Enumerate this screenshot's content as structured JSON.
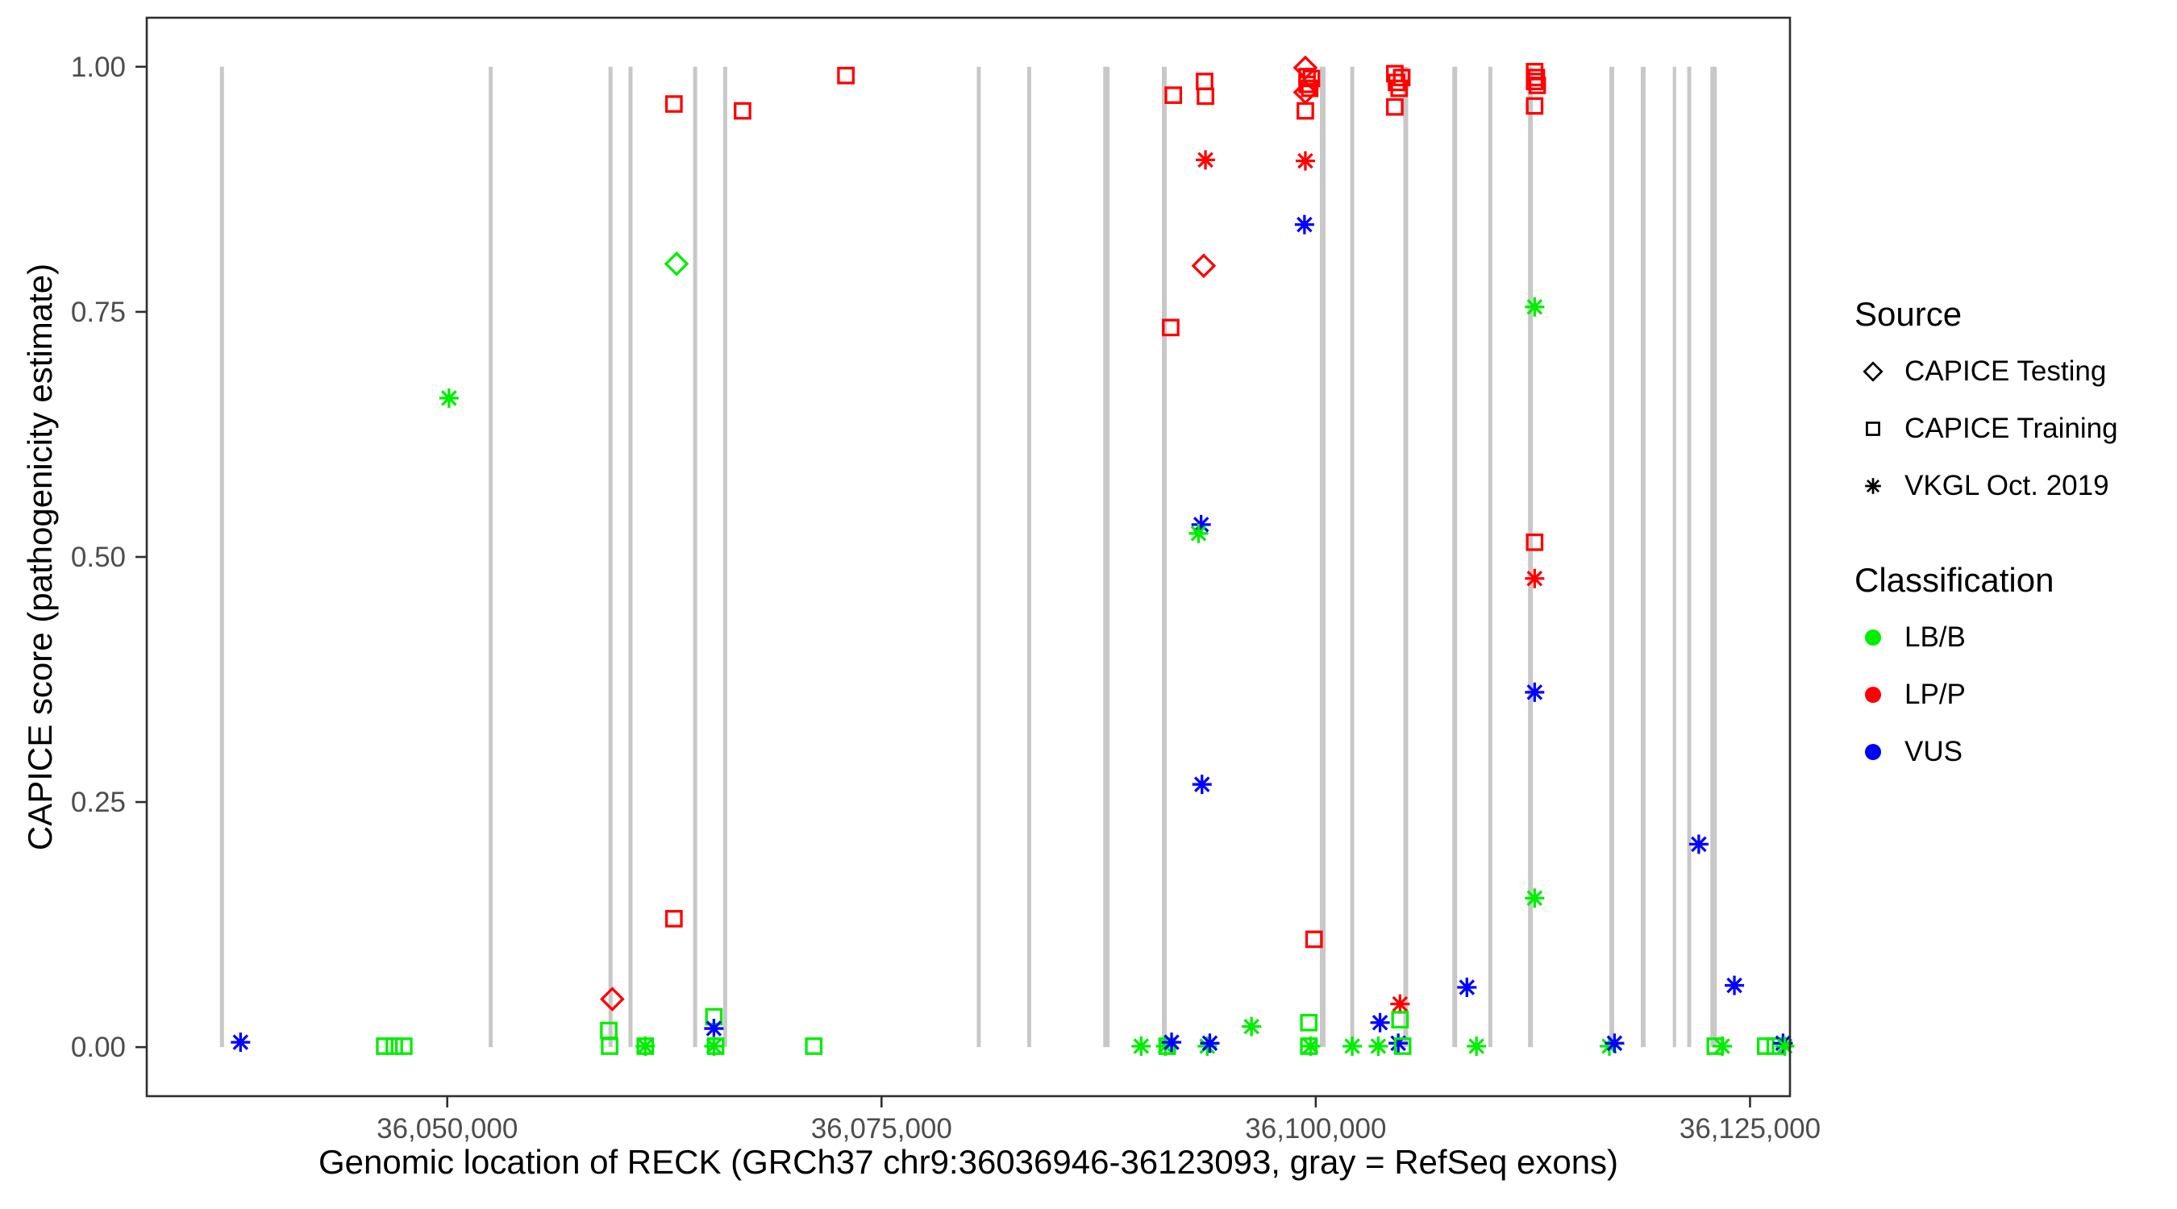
{
  "colors": {
    "LB/B": "#00ee00",
    "LP/P": "#ff0000",
    "VUS": "#0000ff",
    "exon_gray": "#c8c8c8",
    "panel_border": "#2f2f2f",
    "tick_text": "#4d4d4d",
    "legend_symbol": "#000000"
  },
  "layout_note": "scatter of CAPICE scores along RECK gene with gray exon bars",
  "chart_data": {
    "type": "scatter",
    "title": "",
    "xlabel": "Genomic location of RECK (GRCh37 chr9:36036946-36123093, gray = RefSeq exons)",
    "ylabel": "CAPICE score (pathogenicity estimate)",
    "xlim": [
      36032700,
      36127300
    ],
    "ylim": [
      -0.05,
      1.05
    ],
    "grid": "off",
    "x_ticks": [
      36050000,
      36075000,
      36100000,
      36125000
    ],
    "x_tick_labels": [
      "36,050,000",
      "36,075,000",
      "36,100,000",
      "36,125,000"
    ],
    "y_ticks": [
      0.0,
      0.25,
      0.5,
      0.75,
      1.0
    ],
    "y_tick_labels": [
      "0.00",
      "0.25",
      "0.50",
      "0.75",
      "1.00"
    ],
    "legend_position": "right",
    "legend": {
      "source": {
        "title": "Source",
        "items": [
          {
            "shape": "diamond",
            "label": "CAPICE Testing"
          },
          {
            "shape": "square",
            "label": "CAPICE Training"
          },
          {
            "shape": "asterisk",
            "label": "VKGL Oct. 2019"
          }
        ]
      },
      "classification": {
        "title": "Classification",
        "items": [
          {
            "class": "LB/B",
            "label": "LB/B"
          },
          {
            "class": "LP/P",
            "label": "LP/P"
          },
          {
            "class": "VUS",
            "label": "VUS"
          }
        ]
      }
    },
    "exons_note": "gray vertical bars = RefSeq exons, drawn from score 0 to 1; pos = genomic center, w = bar width px",
    "exons": [
      {
        "pos": 36037030,
        "w": 5
      },
      {
        "pos": 36052500,
        "w": 5
      },
      {
        "pos": 36059400,
        "w": 5
      },
      {
        "pos": 36060550,
        "w": 5
      },
      {
        "pos": 36064270,
        "w": 5
      },
      {
        "pos": 36066000,
        "w": 5
      },
      {
        "pos": 36080600,
        "w": 5
      },
      {
        "pos": 36083500,
        "w": 5
      },
      {
        "pos": 36087950,
        "w": 8
      },
      {
        "pos": 36091280,
        "w": 6
      },
      {
        "pos": 36100400,
        "w": 7
      },
      {
        "pos": 36102100,
        "w": 5
      },
      {
        "pos": 36105180,
        "w": 6
      },
      {
        "pos": 36108000,
        "w": 6
      },
      {
        "pos": 36110050,
        "w": 5
      },
      {
        "pos": 36112360,
        "w": 6
      },
      {
        "pos": 36117040,
        "w": 6
      },
      {
        "pos": 36118850,
        "w": 6
      },
      {
        "pos": 36120650,
        "w": 4
      },
      {
        "pos": 36121500,
        "w": 5
      },
      {
        "pos": 36122900,
        "w": 8
      }
    ],
    "points_note": "x = genomic position (GRCh37 chr9), y = CAPICE score, c = classification, s = source shape",
    "points": [
      {
        "x": 36038100,
        "y": 0.005,
        "c": "VUS",
        "s": "vkgl"
      },
      {
        "x": 36046400,
        "y": 0.001,
        "c": "LB/B",
        "s": "training"
      },
      {
        "x": 36046950,
        "y": 0.001,
        "c": "LB/B",
        "s": "training"
      },
      {
        "x": 36047500,
        "y": 0.001,
        "c": "LB/B",
        "s": "training"
      },
      {
        "x": 36050100,
        "y": 0.662,
        "c": "LB/B",
        "s": "vkgl"
      },
      {
        "x": 36059300,
        "y": 0.017,
        "c": "LB/B",
        "s": "training"
      },
      {
        "x": 36059350,
        "y": 0.001,
        "c": "LB/B",
        "s": "training"
      },
      {
        "x": 36059500,
        "y": 0.049,
        "c": "LP/P",
        "s": "testing"
      },
      {
        "x": 36061400,
        "y": 0.001,
        "c": "LB/B",
        "s": "vkgl"
      },
      {
        "x": 36061400,
        "y": 0.001,
        "c": "LB/B",
        "s": "training"
      },
      {
        "x": 36063050,
        "y": 0.131,
        "c": "LP/P",
        "s": "training"
      },
      {
        "x": 36063050,
        "y": 0.962,
        "c": "LP/P",
        "s": "training"
      },
      {
        "x": 36063200,
        "y": 0.799,
        "c": "LB/B",
        "s": "testing"
      },
      {
        "x": 36065350,
        "y": 0.031,
        "c": "LB/B",
        "s": "training"
      },
      {
        "x": 36065350,
        "y": 0.019,
        "c": "VUS",
        "s": "vkgl"
      },
      {
        "x": 36065350,
        "y": 0.001,
        "c": "LB/B",
        "s": "vkgl"
      },
      {
        "x": 36065450,
        "y": 0.001,
        "c": "LB/B",
        "s": "training"
      },
      {
        "x": 36067000,
        "y": 0.955,
        "c": "LP/P",
        "s": "training"
      },
      {
        "x": 36071100,
        "y": 0.001,
        "c": "LB/B",
        "s": "training"
      },
      {
        "x": 36072950,
        "y": 0.991,
        "c": "LP/P",
        "s": "training"
      },
      {
        "x": 36089950,
        "y": 0.001,
        "c": "LB/B",
        "s": "vkgl"
      },
      {
        "x": 36091350,
        "y": 0.001,
        "c": "LB/B",
        "s": "vkgl"
      },
      {
        "x": 36091450,
        "y": 0.001,
        "c": "LB/B",
        "s": "training"
      },
      {
        "x": 36091700,
        "y": 0.005,
        "c": "VUS",
        "s": "vkgl"
      },
      {
        "x": 36091650,
        "y": 0.734,
        "c": "LP/P",
        "s": "training"
      },
      {
        "x": 36091800,
        "y": 0.971,
        "c": "LP/P",
        "s": "training"
      },
      {
        "x": 36093600,
        "y": 0.985,
        "c": "LP/P",
        "s": "training"
      },
      {
        "x": 36093650,
        "y": 0.97,
        "c": "LP/P",
        "s": "training"
      },
      {
        "x": 36093650,
        "y": 0.905,
        "c": "LP/P",
        "s": "vkgl"
      },
      {
        "x": 36093550,
        "y": 0.797,
        "c": "LP/P",
        "s": "testing"
      },
      {
        "x": 36093400,
        "y": 0.533,
        "c": "VUS",
        "s": "vkgl"
      },
      {
        "x": 36093250,
        "y": 0.524,
        "c": "LB/B",
        "s": "vkgl"
      },
      {
        "x": 36093450,
        "y": 0.268,
        "c": "VUS",
        "s": "vkgl"
      },
      {
        "x": 36093750,
        "y": 0.001,
        "c": "LB/B",
        "s": "vkgl"
      },
      {
        "x": 36093900,
        "y": 0.004,
        "c": "VUS",
        "s": "vkgl"
      },
      {
        "x": 36096300,
        "y": 0.021,
        "c": "LB/B",
        "s": "vkgl"
      },
      {
        "x": 36099600,
        "y": 0.025,
        "c": "LB/B",
        "s": "training"
      },
      {
        "x": 36099600,
        "y": 0.001,
        "c": "LB/B",
        "s": "training"
      },
      {
        "x": 36099700,
        "y": 0.001,
        "c": "LB/B",
        "s": "vkgl"
      },
      {
        "x": 36099400,
        "y": 0.999,
        "c": "LP/P",
        "s": "testing"
      },
      {
        "x": 36099500,
        "y": 0.99,
        "c": "LP/P",
        "s": "training"
      },
      {
        "x": 36099750,
        "y": 0.988,
        "c": "LP/P",
        "s": "training"
      },
      {
        "x": 36099500,
        "y": 0.982,
        "c": "LP/P",
        "s": "training"
      },
      {
        "x": 36099650,
        "y": 0.978,
        "c": "LP/P",
        "s": "training"
      },
      {
        "x": 36099400,
        "y": 0.974,
        "c": "LP/P",
        "s": "testing"
      },
      {
        "x": 36099400,
        "y": 0.955,
        "c": "LP/P",
        "s": "training"
      },
      {
        "x": 36099400,
        "y": 0.904,
        "c": "LP/P",
        "s": "vkgl"
      },
      {
        "x": 36099350,
        "y": 0.839,
        "c": "VUS",
        "s": "vkgl"
      },
      {
        "x": 36099900,
        "y": 0.11,
        "c": "LP/P",
        "s": "training"
      },
      {
        "x": 36102100,
        "y": 0.001,
        "c": "LB/B",
        "s": "vkgl"
      },
      {
        "x": 36103600,
        "y": 0.001,
        "c": "LB/B",
        "s": "vkgl"
      },
      {
        "x": 36103700,
        "y": 0.025,
        "c": "VUS",
        "s": "vkgl"
      },
      {
        "x": 36104850,
        "y": 0.044,
        "c": "LP/P",
        "s": "vkgl"
      },
      {
        "x": 36104850,
        "y": 0.028,
        "c": "LB/B",
        "s": "training"
      },
      {
        "x": 36104750,
        "y": 0.004,
        "c": "VUS",
        "s": "vkgl"
      },
      {
        "x": 36105000,
        "y": 0.001,
        "c": "LB/B",
        "s": "training"
      },
      {
        "x": 36104550,
        "y": 0.993,
        "c": "LP/P",
        "s": "training"
      },
      {
        "x": 36104950,
        "y": 0.989,
        "c": "LP/P",
        "s": "training"
      },
      {
        "x": 36104650,
        "y": 0.984,
        "c": "LP/P",
        "s": "training"
      },
      {
        "x": 36104800,
        "y": 0.978,
        "c": "LP/P",
        "s": "training"
      },
      {
        "x": 36104550,
        "y": 0.959,
        "c": "LP/P",
        "s": "training"
      },
      {
        "x": 36108700,
        "y": 0.061,
        "c": "VUS",
        "s": "vkgl"
      },
      {
        "x": 36109250,
        "y": 0.001,
        "c": "LB/B",
        "s": "vkgl"
      },
      {
        "x": 36112600,
        "y": 0.995,
        "c": "LP/P",
        "s": "training"
      },
      {
        "x": 36112700,
        "y": 0.989,
        "c": "LP/P",
        "s": "training"
      },
      {
        "x": 36112600,
        "y": 0.985,
        "c": "LP/P",
        "s": "training"
      },
      {
        "x": 36112750,
        "y": 0.981,
        "c": "LP/P",
        "s": "training"
      },
      {
        "x": 36112600,
        "y": 0.96,
        "c": "LP/P",
        "s": "training"
      },
      {
        "x": 36112600,
        "y": 0.755,
        "c": "LB/B",
        "s": "vkgl"
      },
      {
        "x": 36112600,
        "y": 0.515,
        "c": "LP/P",
        "s": "training"
      },
      {
        "x": 36112600,
        "y": 0.478,
        "c": "LP/P",
        "s": "vkgl"
      },
      {
        "x": 36112600,
        "y": 0.362,
        "c": "VUS",
        "s": "vkgl"
      },
      {
        "x": 36112600,
        "y": 0.152,
        "c": "LB/B",
        "s": "vkgl"
      },
      {
        "x": 36116900,
        "y": 0.001,
        "c": "LB/B",
        "s": "vkgl"
      },
      {
        "x": 36117200,
        "y": 0.004,
        "c": "VUS",
        "s": "vkgl"
      },
      {
        "x": 36122050,
        "y": 0.207,
        "c": "VUS",
        "s": "vkgl"
      },
      {
        "x": 36123000,
        "y": 0.001,
        "c": "LB/B",
        "s": "training"
      },
      {
        "x": 36123400,
        "y": 0.001,
        "c": "LB/B",
        "s": "vkgl"
      },
      {
        "x": 36124100,
        "y": 0.063,
        "c": "VUS",
        "s": "vkgl"
      },
      {
        "x": 36125900,
        "y": 0.001,
        "c": "LB/B",
        "s": "training"
      },
      {
        "x": 36126450,
        "y": 0.001,
        "c": "LB/B",
        "s": "training"
      },
      {
        "x": 36126900,
        "y": 0.004,
        "c": "VUS",
        "s": "vkgl"
      },
      {
        "x": 36127000,
        "y": 0.001,
        "c": "LB/B",
        "s": "vkgl"
      }
    ]
  }
}
